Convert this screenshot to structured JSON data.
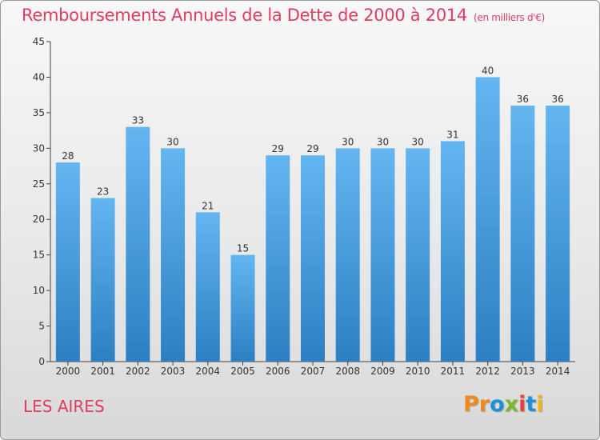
{
  "chart_data": {
    "type": "bar",
    "title": "Remboursements Annuels de la Dette de 2000 à 2014",
    "unit": "(en milliers d'€)",
    "categories": [
      "2000",
      "2001",
      "2002",
      "2003",
      "2004",
      "2005",
      "2006",
      "2007",
      "2008",
      "2009",
      "2010",
      "2011",
      "2012",
      "2013",
      "2014"
    ],
    "values": [
      28,
      23,
      33,
      30,
      21,
      15,
      29,
      29,
      30,
      30,
      30,
      31,
      40,
      36,
      36
    ],
    "ylim": [
      0,
      45
    ],
    "yticks": [
      0,
      5,
      10,
      15,
      20,
      25,
      30,
      35,
      40,
      45
    ],
    "xlabel": "",
    "ylabel": "",
    "grid": false
  },
  "commune": "LES AIRES",
  "logo": {
    "letters": [
      "P",
      "r",
      "o",
      "x",
      "i",
      "t",
      "i"
    ],
    "colors": [
      "#f08a1c",
      "#f08a1c",
      "#1e90d8",
      "#7ab82e",
      "#e8403f",
      "#1e90d8",
      "#f0b31c"
    ]
  }
}
